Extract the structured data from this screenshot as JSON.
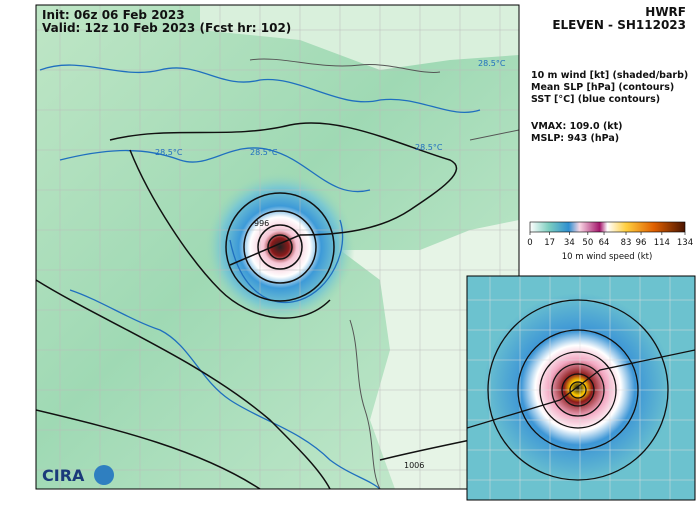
{
  "header": {
    "init": "Init:  06z 06 Feb 2023",
    "valid": "Valid: 12z 10 Feb 2023 (Fcst hr: 102)",
    "model": "HWRF",
    "storm": "ELEVEN - SH112023"
  },
  "legend": {
    "lines": [
      "10 m wind [kt] (shaded/barb)",
      "Mean SLP [hPa] (contours)",
      "SST [°C] (blue contours)"
    ],
    "vmax": "VMAX: 109.0 (kt)",
    "mslp": "MSLP:  943 (hPa)"
  },
  "colorbar": {
    "lim": [
      0,
      134
    ],
    "ticks": [
      0,
      17,
      34,
      50,
      64,
      83,
      96,
      114,
      134
    ],
    "label": "10 m wind speed (kt)"
  },
  "contour_labels": [
    "28.5°C",
    "28.5°C",
    "28.5°C",
    "28.5°C",
    "996",
    "1006"
  ],
  "logo": "CIRA"
}
